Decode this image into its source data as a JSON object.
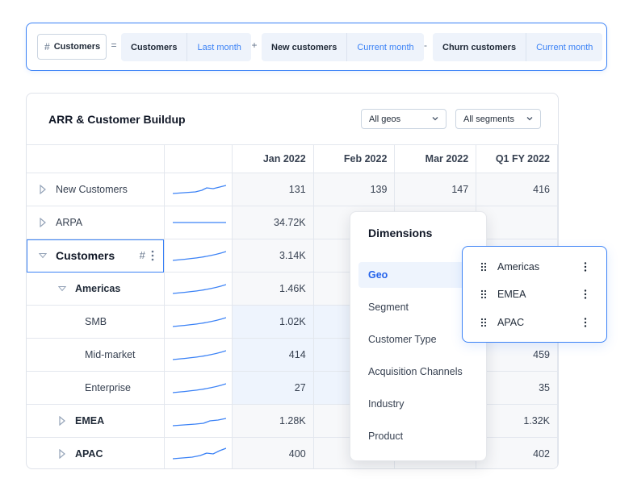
{
  "formula": {
    "result_metric": "Customers",
    "hash_symbol": "#",
    "ops": [
      "=",
      "+",
      "-"
    ],
    "terms": [
      {
        "metric": "Customers",
        "period": "Last month"
      },
      {
        "metric": "New customers",
        "period": "Current month"
      },
      {
        "metric": "Churn customers",
        "period": "Current month"
      }
    ]
  },
  "card": {
    "title": "ARR & Customer Buildup",
    "geo_filter": "All geos",
    "segment_filter": "All segments"
  },
  "table": {
    "columns": [
      "Jan 2022",
      "Feb 2022",
      "Mar 2022",
      "Q1 FY 2022"
    ],
    "rows": [
      {
        "label": "New Customers",
        "values": [
          "131",
          "139",
          "147",
          "416"
        ]
      },
      {
        "label": "ARPA",
        "values": [
          "34.72K",
          "",
          "",
          ""
        ]
      },
      {
        "label": "Customers",
        "values": [
          "3.14K",
          "",
          "",
          ""
        ]
      },
      {
        "label": "Americas",
        "values": [
          "1.46K",
          "",
          "",
          ""
        ]
      },
      {
        "label": "SMB",
        "values": [
          "1.02K",
          "",
          "",
          ""
        ]
      },
      {
        "label": "Mid-market",
        "values": [
          "414",
          "",
          "",
          "459"
        ]
      },
      {
        "label": "Enterprise",
        "values": [
          "27",
          "",
          "",
          "35"
        ]
      },
      {
        "label": "EMEA",
        "values": [
          "1.28K",
          "",
          "",
          "1.32K"
        ]
      },
      {
        "label": "APAC",
        "values": [
          "400",
          "",
          "",
          "402"
        ]
      }
    ]
  },
  "dimensions": {
    "title": "Dimensions",
    "items": [
      "Geo",
      "Segment",
      "Customer Type",
      "Acquisition Channels",
      "Industry",
      "Product"
    ],
    "active": "Geo"
  },
  "geo_values": {
    "items": [
      "Americas",
      "EMEA",
      "APAC"
    ]
  },
  "colors": {
    "accent": "#3b82f6",
    "highlight_cell": "#eef4fd",
    "cell_bg": "#f7f8fa"
  }
}
